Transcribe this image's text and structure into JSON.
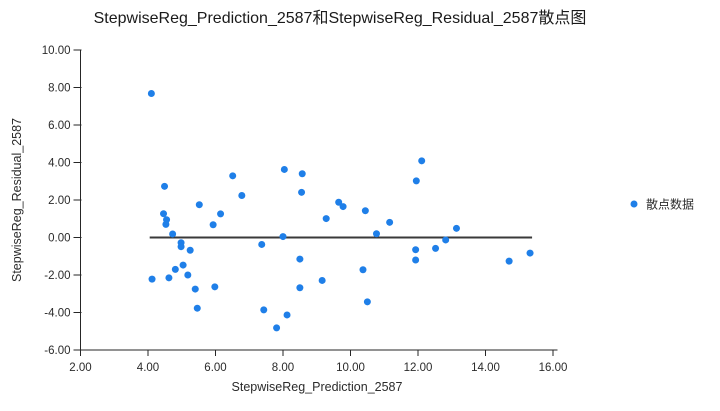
{
  "chart_data": {
    "type": "scatter",
    "title": "StepwiseReg_Prediction_2587和StepwiseReg_Residual_2587散点图",
    "xlabel": "StepwiseReg_Prediction_2587",
    "ylabel": "StepwiseReg_Residual_2587",
    "xlim": [
      2,
      16
    ],
    "ylim": [
      -6,
      10
    ],
    "xticks": [
      2,
      4,
      6,
      8,
      10,
      12,
      14,
      16
    ],
    "yticks": [
      -6,
      -4,
      -2,
      0,
      2,
      4,
      6,
      8,
      10
    ],
    "tick_decimals": 2,
    "grid": false,
    "legend_position": "right",
    "legend": [
      {
        "label": "散点数据",
        "color": "#1f7fe8"
      }
    ],
    "series": [
      {
        "name": "散点数据",
        "color": "#1f7fe8",
        "points": [
          [
            4.1,
            7.68
          ],
          [
            4.49,
            2.73
          ],
          [
            4.46,
            1.27
          ],
          [
            4.55,
            0.95
          ],
          [
            4.53,
            0.7
          ],
          [
            4.73,
            0.19
          ],
          [
            4.98,
            -0.28
          ],
          [
            4.98,
            -0.49
          ],
          [
            5.25,
            -0.68
          ],
          [
            5.04,
            -1.47
          ],
          [
            4.81,
            -1.7
          ],
          [
            5.18,
            -2.0
          ],
          [
            4.62,
            -2.15
          ],
          [
            4.12,
            -2.22
          ],
          [
            5.4,
            -2.75
          ],
          [
            5.98,
            -2.63
          ],
          [
            5.46,
            -3.77
          ],
          [
            5.52,
            1.75
          ],
          [
            6.15,
            1.26
          ],
          [
            5.93,
            0.68
          ],
          [
            6.51,
            3.29
          ],
          [
            6.78,
            2.24
          ],
          [
            8.04,
            3.63
          ],
          [
            8.57,
            3.4
          ],
          [
            8.55,
            2.41
          ],
          [
            9.65,
            1.88
          ],
          [
            9.78,
            1.65
          ],
          [
            10.44,
            1.43
          ],
          [
            9.28,
            1.01
          ],
          [
            11.16,
            0.81
          ],
          [
            8.0,
            0.05
          ],
          [
            10.77,
            0.2
          ],
          [
            7.37,
            -0.37
          ],
          [
            8.5,
            -1.15
          ],
          [
            10.37,
            -1.72
          ],
          [
            9.16,
            -2.29
          ],
          [
            8.5,
            -2.68
          ],
          [
            10.5,
            -3.43
          ],
          [
            7.43,
            -3.86
          ],
          [
            8.12,
            -4.13
          ],
          [
            7.81,
            -4.82
          ],
          [
            12.11,
            4.09
          ],
          [
            11.95,
            3.02
          ],
          [
            11.93,
            -0.65
          ],
          [
            11.93,
            -1.2
          ],
          [
            12.52,
            -0.58
          ],
          [
            12.82,
            -0.13
          ],
          [
            13.14,
            0.49
          ],
          [
            14.7,
            -1.26
          ],
          [
            15.32,
            -0.83
          ]
        ]
      }
    ],
    "zero_line": {
      "y": 0,
      "x_start": 4.05,
      "x_end": 15.38,
      "color": "#3a3a3a"
    },
    "colors": {
      "point": "#1f7fe8",
      "axis": "#262626",
      "background": "#ffffff"
    }
  }
}
